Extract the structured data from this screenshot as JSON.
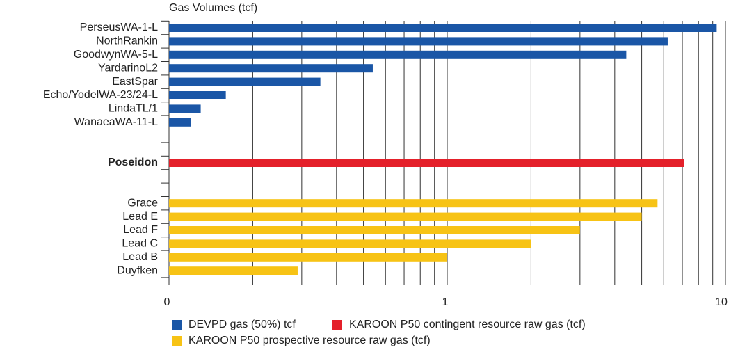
{
  "chart_data": {
    "type": "bar",
    "orientation": "horizontal",
    "title": "Gas Volumes (tcf)",
    "categories": [
      "PerseusWA-1-L",
      "NorthRankin",
      "GoodwynWA-5-L",
      "YardarinoL2",
      "EastSpar",
      "Echo/YodelWA-23/24-L",
      "LindaTL/1",
      "WanaeaWA-11-L",
      null,
      null,
      "Poseidon",
      null,
      null,
      "Grace",
      "Lead E",
      "Lead F",
      "Lead C",
      "Lead B",
      "Duyfken"
    ],
    "series": [
      {
        "name": "DEVPD gas (50%) tcf",
        "color": "#1a56a6",
        "values": [
          9.3,
          6.2,
          4.4,
          0.54,
          0.35,
          0.16,
          0.13,
          0.12,
          null,
          null,
          null,
          null,
          null,
          null,
          null,
          null,
          null,
          null,
          null
        ]
      },
      {
        "name": "KAROON P50 contingent resource raw gas (tcf)",
        "color": "#e4202a",
        "values": [
          null,
          null,
          null,
          null,
          null,
          null,
          null,
          null,
          null,
          null,
          7.1,
          null,
          null,
          null,
          null,
          null,
          null,
          null,
          null
        ]
      },
      {
        "name": "KAROON P50 prospective resource raw gas (tcf)",
        "color": "#f7c315",
        "values": [
          null,
          null,
          null,
          null,
          null,
          null,
          null,
          null,
          null,
          null,
          null,
          null,
          null,
          5.7,
          5.0,
          3.0,
          2.0,
          1.0,
          0.29
        ]
      }
    ],
    "xscale": "log",
    "xlim": [
      0.1,
      10
    ],
    "xticks": [
      {
        "value": 0.1,
        "label": "0"
      },
      1,
      10
    ],
    "minor_xticks": [
      0.2,
      0.3,
      0.4,
      0.5,
      0.6,
      0.7,
      0.8,
      0.9,
      2,
      3,
      4,
      5,
      6,
      7,
      8,
      9
    ],
    "grid": true
  }
}
